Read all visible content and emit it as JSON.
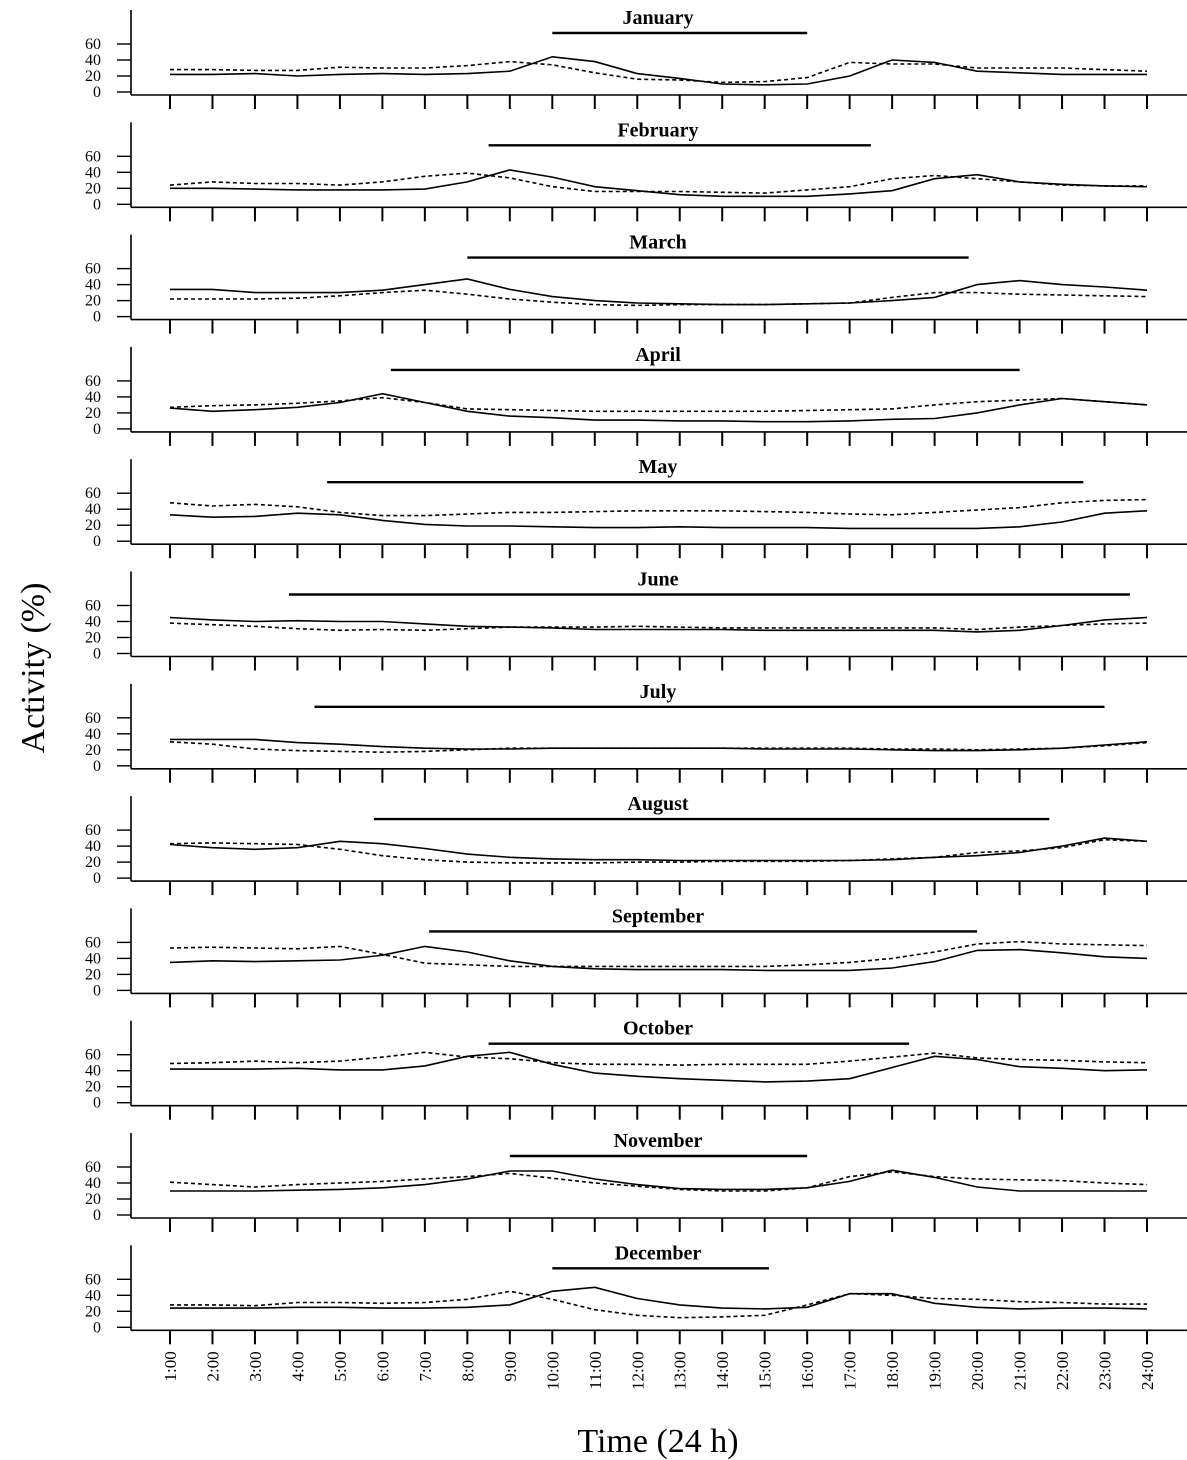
{
  "chart_data": {
    "type": "line",
    "ylabel": "Activity (%)",
    "xlabel": "Time (24 h)",
    "x": [
      "1:00",
      "2:00",
      "3:00",
      "4:00",
      "5:00",
      "6:00",
      "7:00",
      "8:00",
      "9:00",
      "10:00",
      "11:00",
      "12:00",
      "13:00",
      "14:00",
      "15:00",
      "16:00",
      "17:00",
      "18:00",
      "19:00",
      "20:00",
      "21:00",
      "22:00",
      "23:00",
      "24:00"
    ],
    "yticks": [
      0,
      20,
      40,
      60
    ],
    "ylim": [
      0,
      80
    ],
    "styles": {
      "solid": "#000000",
      "dashed": "#000000"
    },
    "panels": [
      {
        "title": "January",
        "bar": [
          10.0,
          16.0
        ],
        "solid": [
          22,
          22,
          23,
          20,
          22,
          23,
          22,
          23,
          26,
          44,
          38,
          23,
          17,
          10,
          9,
          10,
          20,
          40,
          37,
          26,
          24,
          22,
          22,
          22
        ],
        "dashed": [
          28,
          28,
          27,
          27,
          31,
          30,
          30,
          33,
          38,
          34,
          24,
          16,
          15,
          12,
          13,
          18,
          37,
          35,
          35,
          30,
          30,
          30,
          28,
          26
        ]
      },
      {
        "title": "February",
        "bar": [
          8.5,
          17.5
        ],
        "solid": [
          20,
          20,
          19,
          18,
          18,
          18,
          19,
          28,
          43,
          34,
          22,
          17,
          12,
          10,
          10,
          10,
          13,
          17,
          32,
          37,
          28,
          25,
          23,
          22
        ],
        "dashed": [
          24,
          28,
          26,
          26,
          24,
          28,
          35,
          39,
          33,
          22,
          16,
          16,
          16,
          15,
          14,
          18,
          22,
          32,
          36,
          32,
          28,
          24,
          23,
          23
        ]
      },
      {
        "title": "March",
        "bar": [
          8.0,
          19.8
        ],
        "solid": [
          34,
          34,
          30,
          30,
          30,
          33,
          40,
          47,
          34,
          25,
          20,
          17,
          16,
          15,
          15,
          16,
          17,
          20,
          24,
          40,
          45,
          40,
          37,
          33
        ],
        "dashed": [
          22,
          22,
          22,
          23,
          26,
          30,
          33,
          28,
          22,
          18,
          15,
          14,
          15,
          15,
          15,
          16,
          17,
          24,
          30,
          30,
          28,
          27,
          26,
          25
        ]
      },
      {
        "title": "April",
        "bar": [
          6.2,
          21.0
        ],
        "solid": [
          26,
          22,
          24,
          27,
          33,
          44,
          33,
          22,
          16,
          14,
          11,
          11,
          10,
          10,
          9,
          9,
          10,
          12,
          13,
          20,
          30,
          38,
          34,
          30
        ],
        "dashed": [
          27,
          29,
          30,
          32,
          35,
          39,
          33,
          25,
          24,
          23,
          22,
          22,
          22,
          22,
          22,
          23,
          24,
          25,
          30,
          34,
          36,
          38,
          34,
          30
        ]
      },
      {
        "title": "May",
        "bar": [
          4.7,
          22.5
        ],
        "solid": [
          33,
          30,
          31,
          35,
          33,
          26,
          21,
          19,
          19,
          18,
          17,
          17,
          18,
          17,
          17,
          17,
          16,
          16,
          16,
          16,
          18,
          24,
          35,
          38
        ],
        "dashed": [
          48,
          44,
          46,
          43,
          36,
          32,
          32,
          34,
          36,
          36,
          37,
          38,
          38,
          38,
          37,
          36,
          34,
          33,
          36,
          39,
          42,
          48,
          51,
          52
        ]
      },
      {
        "title": "June",
        "bar": [
          3.8,
          23.6
        ],
        "solid": [
          45,
          42,
          40,
          41,
          40,
          40,
          37,
          34,
          33,
          32,
          30,
          30,
          30,
          30,
          29,
          29,
          29,
          29,
          29,
          27,
          29,
          35,
          42,
          45
        ],
        "dashed": [
          38,
          36,
          34,
          31,
          29,
          30,
          29,
          31,
          33,
          33,
          33,
          34,
          33,
          32,
          32,
          32,
          32,
          32,
          32,
          30,
          33,
          35,
          37,
          38
        ]
      },
      {
        "title": "July",
        "bar": [
          4.4,
          23.0
        ],
        "solid": [
          33,
          33,
          33,
          29,
          27,
          24,
          22,
          21,
          21,
          22,
          22,
          22,
          22,
          22,
          21,
          21,
          21,
          20,
          19,
          19,
          20,
          22,
          26,
          30
        ],
        "dashed": [
          30,
          27,
          21,
          19,
          18,
          17,
          18,
          20,
          22,
          22,
          22,
          22,
          22,
          22,
          22,
          22,
          22,
          21,
          21,
          20,
          21,
          22,
          25,
          29
        ]
      },
      {
        "title": "August",
        "bar": [
          5.8,
          21.7
        ],
        "solid": [
          42,
          38,
          36,
          38,
          46,
          43,
          37,
          30,
          26,
          24,
          23,
          23,
          22,
          22,
          22,
          22,
          22,
          23,
          26,
          28,
          32,
          40,
          50,
          46
        ],
        "dashed": [
          43,
          44,
          43,
          42,
          36,
          28,
          23,
          20,
          19,
          19,
          19,
          20,
          20,
          21,
          21,
          21,
          22,
          24,
          26,
          32,
          34,
          38,
          48,
          46
        ]
      },
      {
        "title": "September",
        "bar": [
          7.1,
          20.0
        ],
        "solid": [
          35,
          37,
          36,
          37,
          38,
          44,
          55,
          48,
          37,
          30,
          27,
          26,
          26,
          26,
          25,
          25,
          25,
          28,
          36,
          50,
          51,
          47,
          42,
          40
        ],
        "dashed": [
          53,
          54,
          53,
          52,
          55,
          45,
          34,
          32,
          30,
          30,
          30,
          30,
          30,
          30,
          30,
          32,
          35,
          40,
          48,
          58,
          61,
          58,
          57,
          56
        ]
      },
      {
        "title": "October",
        "bar": [
          8.5,
          18.4
        ],
        "solid": [
          42,
          42,
          42,
          43,
          41,
          41,
          46,
          58,
          63,
          48,
          37,
          33,
          30,
          28,
          26,
          27,
          30,
          44,
          58,
          54,
          45,
          43,
          40,
          41
        ],
        "dashed": [
          49,
          50,
          52,
          50,
          52,
          57,
          63,
          57,
          55,
          50,
          48,
          48,
          47,
          48,
          48,
          48,
          52,
          57,
          62,
          56,
          54,
          53,
          51,
          50
        ]
      },
      {
        "title": "November",
        "bar": [
          9.0,
          16.0
        ],
        "solid": [
          30,
          30,
          30,
          31,
          32,
          34,
          38,
          45,
          55,
          55,
          45,
          38,
          33,
          32,
          32,
          34,
          42,
          56,
          47,
          35,
          30,
          30,
          30,
          30
        ],
        "dashed": [
          41,
          38,
          35,
          38,
          40,
          42,
          45,
          48,
          52,
          46,
          40,
          36,
          32,
          30,
          30,
          34,
          48,
          54,
          48,
          45,
          44,
          43,
          40,
          38
        ]
      },
      {
        "title": "December",
        "bar": [
          10.0,
          15.1
        ],
        "solid": [
          24,
          24,
          24,
          25,
          25,
          24,
          24,
          25,
          28,
          45,
          50,
          36,
          28,
          24,
          23,
          25,
          42,
          42,
          30,
          25,
          23,
          24,
          24,
          23
        ],
        "dashed": [
          28,
          28,
          27,
          31,
          31,
          30,
          31,
          35,
          45,
          35,
          22,
          15,
          12,
          13,
          15,
          28,
          42,
          40,
          36,
          35,
          32,
          31,
          29,
          29
        ]
      }
    ]
  }
}
